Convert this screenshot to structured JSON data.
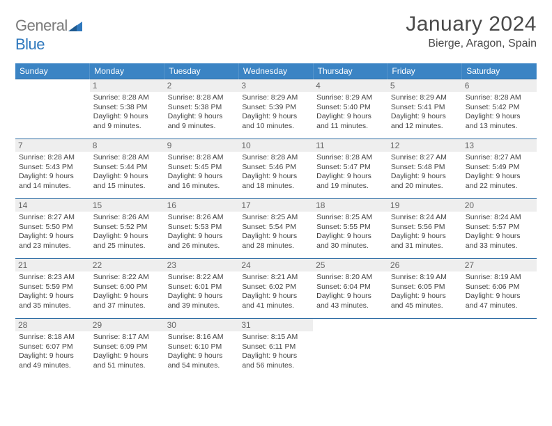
{
  "logo": {
    "word1": "General",
    "word2": "Blue"
  },
  "title": "January 2024",
  "location": "Bierge, Aragon, Spain",
  "header_bg": "#3b84c4",
  "days": [
    "Sunday",
    "Monday",
    "Tuesday",
    "Wednesday",
    "Thursday",
    "Friday",
    "Saturday"
  ],
  "weeks": [
    [
      null,
      {
        "n": "1",
        "sr": "8:28 AM",
        "ss": "5:38 PM",
        "dl": "9 hours and 9 minutes."
      },
      {
        "n": "2",
        "sr": "8:28 AM",
        "ss": "5:38 PM",
        "dl": "9 hours and 9 minutes."
      },
      {
        "n": "3",
        "sr": "8:29 AM",
        "ss": "5:39 PM",
        "dl": "9 hours and 10 minutes."
      },
      {
        "n": "4",
        "sr": "8:29 AM",
        "ss": "5:40 PM",
        "dl": "9 hours and 11 minutes."
      },
      {
        "n": "5",
        "sr": "8:29 AM",
        "ss": "5:41 PM",
        "dl": "9 hours and 12 minutes."
      },
      {
        "n": "6",
        "sr": "8:28 AM",
        "ss": "5:42 PM",
        "dl": "9 hours and 13 minutes."
      }
    ],
    [
      {
        "n": "7",
        "sr": "8:28 AM",
        "ss": "5:43 PM",
        "dl": "9 hours and 14 minutes."
      },
      {
        "n": "8",
        "sr": "8:28 AM",
        "ss": "5:44 PM",
        "dl": "9 hours and 15 minutes."
      },
      {
        "n": "9",
        "sr": "8:28 AM",
        "ss": "5:45 PM",
        "dl": "9 hours and 16 minutes."
      },
      {
        "n": "10",
        "sr": "8:28 AM",
        "ss": "5:46 PM",
        "dl": "9 hours and 18 minutes."
      },
      {
        "n": "11",
        "sr": "8:28 AM",
        "ss": "5:47 PM",
        "dl": "9 hours and 19 minutes."
      },
      {
        "n": "12",
        "sr": "8:27 AM",
        "ss": "5:48 PM",
        "dl": "9 hours and 20 minutes."
      },
      {
        "n": "13",
        "sr": "8:27 AM",
        "ss": "5:49 PM",
        "dl": "9 hours and 22 minutes."
      }
    ],
    [
      {
        "n": "14",
        "sr": "8:27 AM",
        "ss": "5:50 PM",
        "dl": "9 hours and 23 minutes."
      },
      {
        "n": "15",
        "sr": "8:26 AM",
        "ss": "5:52 PM",
        "dl": "9 hours and 25 minutes."
      },
      {
        "n": "16",
        "sr": "8:26 AM",
        "ss": "5:53 PM",
        "dl": "9 hours and 26 minutes."
      },
      {
        "n": "17",
        "sr": "8:25 AM",
        "ss": "5:54 PM",
        "dl": "9 hours and 28 minutes."
      },
      {
        "n": "18",
        "sr": "8:25 AM",
        "ss": "5:55 PM",
        "dl": "9 hours and 30 minutes."
      },
      {
        "n": "19",
        "sr": "8:24 AM",
        "ss": "5:56 PM",
        "dl": "9 hours and 31 minutes."
      },
      {
        "n": "20",
        "sr": "8:24 AM",
        "ss": "5:57 PM",
        "dl": "9 hours and 33 minutes."
      }
    ],
    [
      {
        "n": "21",
        "sr": "8:23 AM",
        "ss": "5:59 PM",
        "dl": "9 hours and 35 minutes."
      },
      {
        "n": "22",
        "sr": "8:22 AM",
        "ss": "6:00 PM",
        "dl": "9 hours and 37 minutes."
      },
      {
        "n": "23",
        "sr": "8:22 AM",
        "ss": "6:01 PM",
        "dl": "9 hours and 39 minutes."
      },
      {
        "n": "24",
        "sr": "8:21 AM",
        "ss": "6:02 PM",
        "dl": "9 hours and 41 minutes."
      },
      {
        "n": "25",
        "sr": "8:20 AM",
        "ss": "6:04 PM",
        "dl": "9 hours and 43 minutes."
      },
      {
        "n": "26",
        "sr": "8:19 AM",
        "ss": "6:05 PM",
        "dl": "9 hours and 45 minutes."
      },
      {
        "n": "27",
        "sr": "8:19 AM",
        "ss": "6:06 PM",
        "dl": "9 hours and 47 minutes."
      }
    ],
    [
      {
        "n": "28",
        "sr": "8:18 AM",
        "ss": "6:07 PM",
        "dl": "9 hours and 49 minutes."
      },
      {
        "n": "29",
        "sr": "8:17 AM",
        "ss": "6:09 PM",
        "dl": "9 hours and 51 minutes."
      },
      {
        "n": "30",
        "sr": "8:16 AM",
        "ss": "6:10 PM",
        "dl": "9 hours and 54 minutes."
      },
      {
        "n": "31",
        "sr": "8:15 AM",
        "ss": "6:11 PM",
        "dl": "9 hours and 56 minutes."
      },
      null,
      null,
      null
    ]
  ],
  "labels": {
    "sunrise": "Sunrise:",
    "sunset": "Sunset:",
    "daylight": "Daylight:"
  }
}
